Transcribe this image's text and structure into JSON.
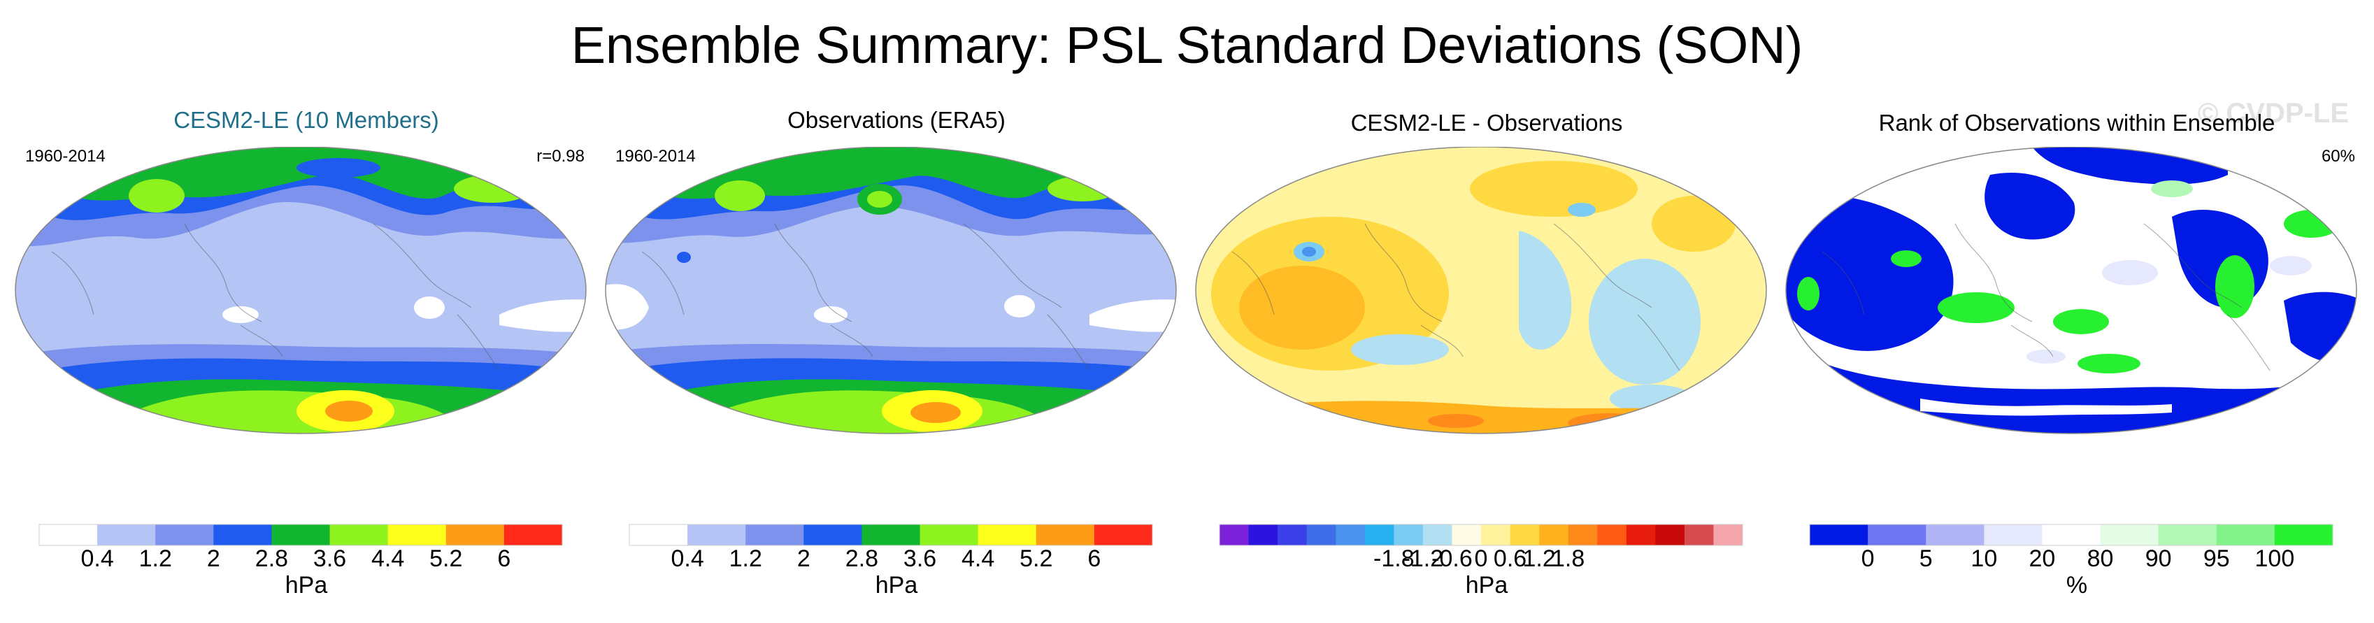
{
  "title": "Ensemble Summary: PSL Standard Deviations (SON)",
  "watermark": "© CVDP-LE",
  "panels": [
    {
      "title": "CESM2-LE (10 Members)",
      "period": "1960-2014",
      "stat": "r=0.98",
      "unit": "hPa",
      "colorbar": {
        "colors": [
          "#ffffff",
          "#b4c4f4",
          "#7c92ec",
          "#1f5bef",
          "#12b530",
          "#8ef21f",
          "#ffff1e",
          "#ff9c16",
          "#ff2a1a"
        ],
        "ticks": [
          "0.4",
          "1.2",
          "2",
          "2.8",
          "3.6",
          "4.4",
          "5.2",
          "6"
        ]
      }
    },
    {
      "title": "Observations (ERA5)",
      "period": "1960-2014",
      "stat": "",
      "unit": "hPa",
      "colorbar": {
        "colors": [
          "#ffffff",
          "#b4c4f4",
          "#7c92ec",
          "#1f5bef",
          "#12b530",
          "#8ef21f",
          "#ffff1e",
          "#ff9c16",
          "#ff2a1a"
        ],
        "ticks": [
          "0.4",
          "1.2",
          "2",
          "2.8",
          "3.6",
          "4.4",
          "5.2",
          "6"
        ]
      }
    },
    {
      "title": "CESM2-LE - Observations",
      "period": "",
      "stat": "",
      "unit": "hPa",
      "colorbar": {
        "colors": [
          "#7a21d9",
          "#2d13de",
          "#3b3fe8",
          "#3f6de8",
          "#4a93ec",
          "#28b1f0",
          "#7ccbf2",
          "#b2dff2",
          "#fffbe4",
          "#fff39e",
          "#ffd941",
          "#ffb21c",
          "#ff8a1c",
          "#ff5a14",
          "#e81c0c",
          "#c80a0a",
          "#d64b50",
          "#f3a5ab"
        ],
        "ticks": [
          "-1.8",
          "-1.2",
          "-0.6",
          "0",
          "0.6",
          "1.2",
          "1.8"
        ]
      }
    },
    {
      "title": "Rank of Observations within Ensemble",
      "period": "",
      "stat": "60%",
      "unit": "%",
      "colorbar": {
        "colors": [
          "#0019e4",
          "#6d75f2",
          "#b0b4f6",
          "#e6e8fd",
          "#ffffff",
          "#e5fce6",
          "#b2f7b5",
          "#82f388",
          "#26f02f"
        ],
        "ticks": [
          "0",
          "5",
          "10",
          "20",
          "80",
          "90",
          "95",
          "100"
        ]
      }
    }
  ]
}
